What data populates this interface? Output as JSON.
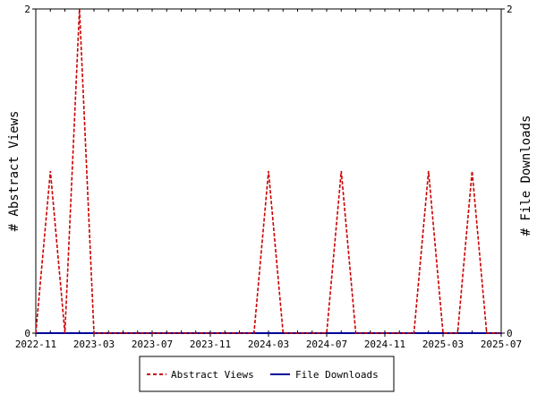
{
  "chart_data": {
    "type": "line",
    "x_axis": {
      "ticks": [
        "2022-11",
        "2023-03",
        "2023-07",
        "2023-11",
        "2024-03",
        "2024-07",
        "2024-11",
        "2025-03",
        "2025-07"
      ],
      "range": [
        "2022-11",
        "2025-07"
      ]
    },
    "y_left": {
      "label": "# Abstract Views",
      "range": [
        0,
        2
      ],
      "ticks": [
        "0",
        "2"
      ]
    },
    "y_right": {
      "label": "# File Downloads",
      "range": [
        0,
        2
      ],
      "ticks": [
        "0",
        "2"
      ]
    },
    "series": [
      {
        "name": "Abstract Views",
        "color": "#cc0000",
        "style": "dashed",
        "axis": "left",
        "x": [
          "2022-11",
          "2022-12",
          "2023-01",
          "2023-02",
          "2023-03",
          "2023-04",
          "2023-05",
          "2023-06",
          "2023-07",
          "2023-08",
          "2023-09",
          "2023-10",
          "2023-11",
          "2023-12",
          "2024-01",
          "2024-02",
          "2024-03",
          "2024-04",
          "2024-05",
          "2024-06",
          "2024-07",
          "2024-08",
          "2024-09",
          "2024-10",
          "2024-11",
          "2024-12",
          "2025-01",
          "2025-02",
          "2025-03",
          "2025-04",
          "2025-05",
          "2025-06",
          "2025-07"
        ],
        "values": [
          0,
          1,
          0,
          2,
          0,
          0,
          0,
          0,
          0,
          0,
          0,
          0,
          0,
          0,
          0,
          0,
          1,
          0,
          0,
          0,
          0,
          1,
          0,
          0,
          0,
          0,
          0,
          1,
          0,
          0,
          1,
          0,
          0
        ]
      },
      {
        "name": "File Downloads",
        "color": "#000099",
        "style": "solid",
        "axis": "right",
        "x": [
          "2022-11",
          "2025-07"
        ],
        "values": [
          0,
          0
        ]
      }
    ],
    "legend": {
      "position": "bottom"
    },
    "grid": false
  }
}
